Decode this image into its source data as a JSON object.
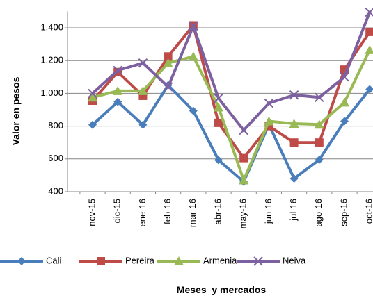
{
  "chart_data": {
    "type": "line",
    "y_label": "Valor en pesos",
    "x_label": "Meses  y mercados",
    "categories": [
      "nov-15",
      "dic-15",
      "ene-16",
      "feb-16",
      "mar-16",
      "abr-16",
      "may-16",
      "jun-16",
      "jul-16",
      "ago-16",
      "sep-16",
      "oct-16"
    ],
    "series": [
      {
        "name": "Cali",
        "color": "#4a7ebb",
        "marker": "diamond",
        "values": [
          808,
          948,
          808,
          1050,
          893,
          593,
          460,
          810,
          480,
          595,
          830,
          1025
        ]
      },
      {
        "name": "Pereira",
        "color": "#be4b48",
        "marker": "square",
        "values": [
          955,
          1130,
          985,
          1225,
          1415,
          820,
          605,
          800,
          700,
          700,
          1145,
          1375
        ]
      },
      {
        "name": "Armenia",
        "color": "#98b954",
        "marker": "triangle",
        "values": [
          975,
          1015,
          1015,
          1185,
          1225,
          915,
          470,
          830,
          815,
          810,
          945,
          1265
        ]
      },
      {
        "name": "Neiva",
        "color": "#7d60a0",
        "marker": "x",
        "values": [
          1000,
          1140,
          1185,
          1040,
          1410,
          970,
          775,
          940,
          990,
          975,
          1100,
          1495
        ]
      }
    ],
    "ylim": [
      400,
      1500
    ],
    "yticks": [
      400,
      600,
      800,
      {
        "value": 1000,
        "label": "1.000"
      },
      {
        "value": 1200,
        "label": "1.200"
      },
      {
        "value": 1400,
        "label": "1.400"
      }
    ],
    "grid": true
  }
}
